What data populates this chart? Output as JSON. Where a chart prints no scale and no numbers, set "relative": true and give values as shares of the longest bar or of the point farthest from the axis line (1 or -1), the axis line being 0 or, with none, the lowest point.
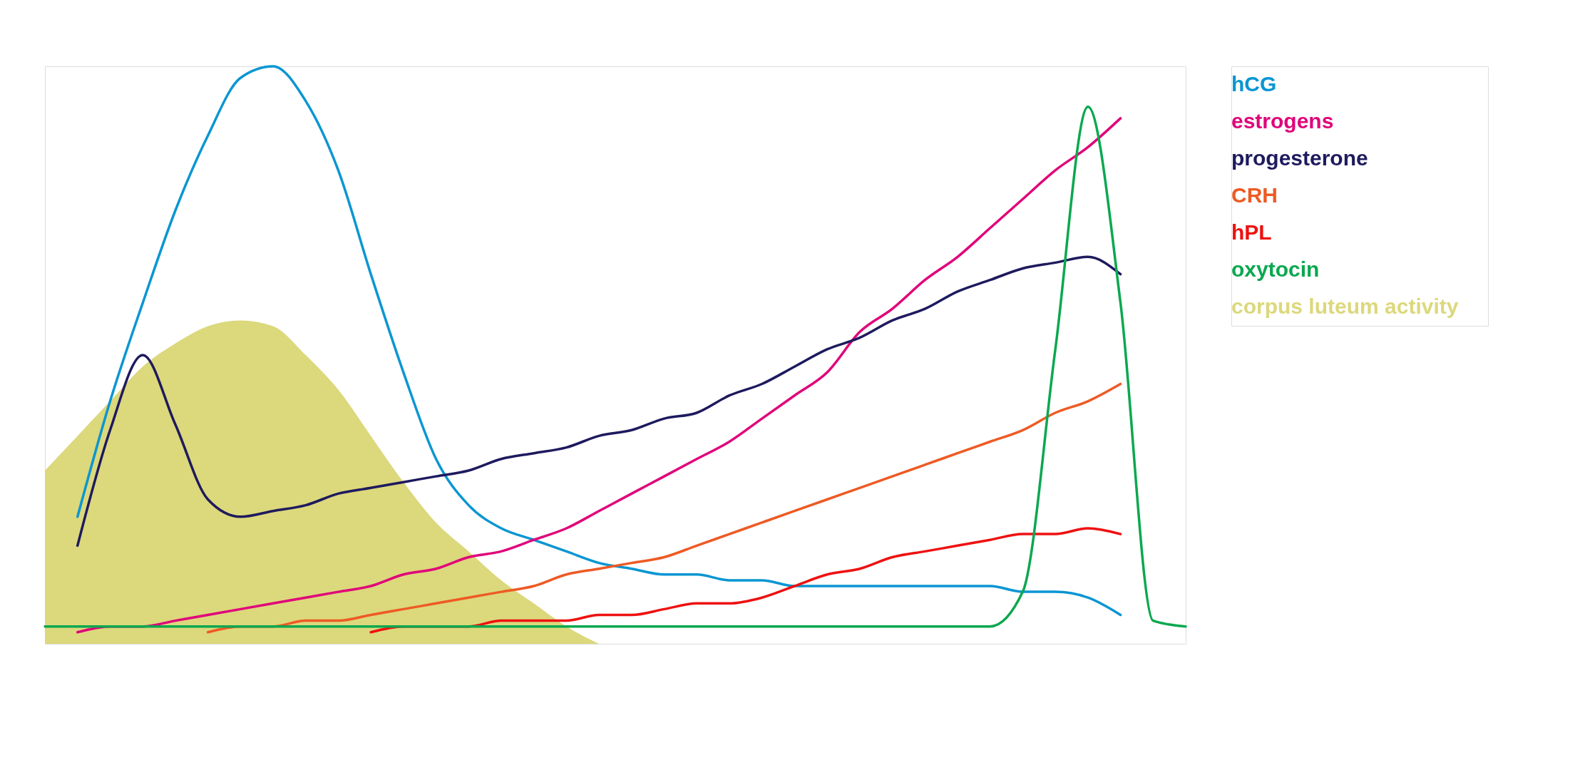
{
  "chart_data": {
    "type": "line",
    "relative": true,
    "legend": "right",
    "line_style": "solid",
    "marker": "none",
    "categories": [
      null,
      null,
      null,
      null,
      null,
      null,
      null,
      null,
      null,
      null,
      null,
      null,
      null,
      null,
      null,
      null,
      null,
      null,
      null,
      null,
      null,
      null,
      null,
      null,
      null,
      null,
      null,
      null,
      null,
      null,
      null,
      null,
      null,
      null,
      null,
      null
    ],
    "series": [
      {
        "name": "hCG",
        "color": "#0a96d2",
        "values": [
          null,
          0.22,
          0.42,
          0.59,
          0.75,
          0.88,
          0.98,
          1.0,
          0.94,
          0.82,
          0.64,
          0.47,
          0.32,
          0.24,
          0.2,
          0.18,
          0.16,
          0.14,
          0.13,
          0.12,
          0.12,
          0.11,
          0.11,
          0.1,
          0.1,
          0.1,
          0.1,
          0.1,
          0.1,
          0.1,
          0.09,
          0.09,
          0.08,
          0.05,
          null,
          null
        ]
      },
      {
        "name": "estrogens",
        "color": "#e0047a",
        "values": [
          null,
          0.02,
          0.03,
          0.03,
          0.04,
          0.05,
          0.06,
          0.07,
          0.08,
          0.09,
          0.1,
          0.12,
          0.13,
          0.15,
          0.16,
          0.18,
          0.2,
          0.23,
          0.26,
          0.29,
          0.32,
          0.35,
          0.39,
          0.43,
          0.47,
          0.54,
          0.58,
          0.63,
          0.67,
          0.72,
          0.77,
          0.82,
          0.86,
          0.91,
          null,
          null
        ]
      },
      {
        "name": "progesterone",
        "color": "#1e1a5e",
        "values": [
          null,
          0.17,
          0.37,
          0.5,
          0.38,
          0.25,
          0.22,
          0.23,
          0.24,
          0.26,
          0.27,
          0.28,
          0.29,
          0.3,
          0.32,
          0.33,
          0.34,
          0.36,
          0.37,
          0.39,
          0.4,
          0.43,
          0.45,
          0.48,
          0.51,
          0.53,
          0.56,
          0.58,
          0.61,
          0.63,
          0.65,
          0.66,
          0.67,
          0.64,
          null,
          null
        ]
      },
      {
        "name": "CRH",
        "color": "#ee5a24",
        "values": [
          null,
          null,
          null,
          null,
          null,
          0.02,
          0.03,
          0.03,
          0.04,
          0.04,
          0.05,
          0.06,
          0.07,
          0.08,
          0.09,
          0.1,
          0.12,
          0.13,
          0.14,
          0.15,
          0.17,
          0.19,
          0.21,
          0.23,
          0.25,
          0.27,
          0.29,
          0.31,
          0.33,
          0.35,
          0.37,
          0.4,
          0.42,
          0.45,
          null,
          null
        ]
      },
      {
        "name": "hPL",
        "color": "#ee1111",
        "values": [
          null,
          null,
          null,
          null,
          null,
          null,
          null,
          null,
          null,
          null,
          0.02,
          0.03,
          0.03,
          0.03,
          0.04,
          0.04,
          0.04,
          0.05,
          0.05,
          0.06,
          0.07,
          0.07,
          0.08,
          0.1,
          0.12,
          0.13,
          0.15,
          0.16,
          0.17,
          0.18,
          0.19,
          0.19,
          0.2,
          0.19,
          null,
          null
        ]
      },
      {
        "name": "oxytocin",
        "color": "#0aa84f",
        "values": [
          0.03,
          0.03,
          0.03,
          0.03,
          0.03,
          0.03,
          0.03,
          0.03,
          0.03,
          0.03,
          0.03,
          0.03,
          0.03,
          0.03,
          0.03,
          0.03,
          0.03,
          0.03,
          0.03,
          0.03,
          0.03,
          0.03,
          0.03,
          0.03,
          0.03,
          0.03,
          0.03,
          0.03,
          0.03,
          0.03,
          0.09,
          0.51,
          0.93,
          0.59,
          0.04,
          0.03
        ]
      },
      {
        "name": "corpus luteum activity",
        "type": "area",
        "color": "#dcd87c",
        "values": [
          0.3,
          0.36,
          0.42,
          0.48,
          0.52,
          0.55,
          0.56,
          0.55,
          0.5,
          0.44,
          0.36,
          0.28,
          0.21,
          0.16,
          0.11,
          0.07,
          0.03,
          0,
          null,
          null,
          null,
          null,
          null,
          null,
          null,
          null,
          null,
          null,
          null,
          null,
          null,
          null,
          null,
          null,
          null,
          null
        ]
      }
    ]
  }
}
